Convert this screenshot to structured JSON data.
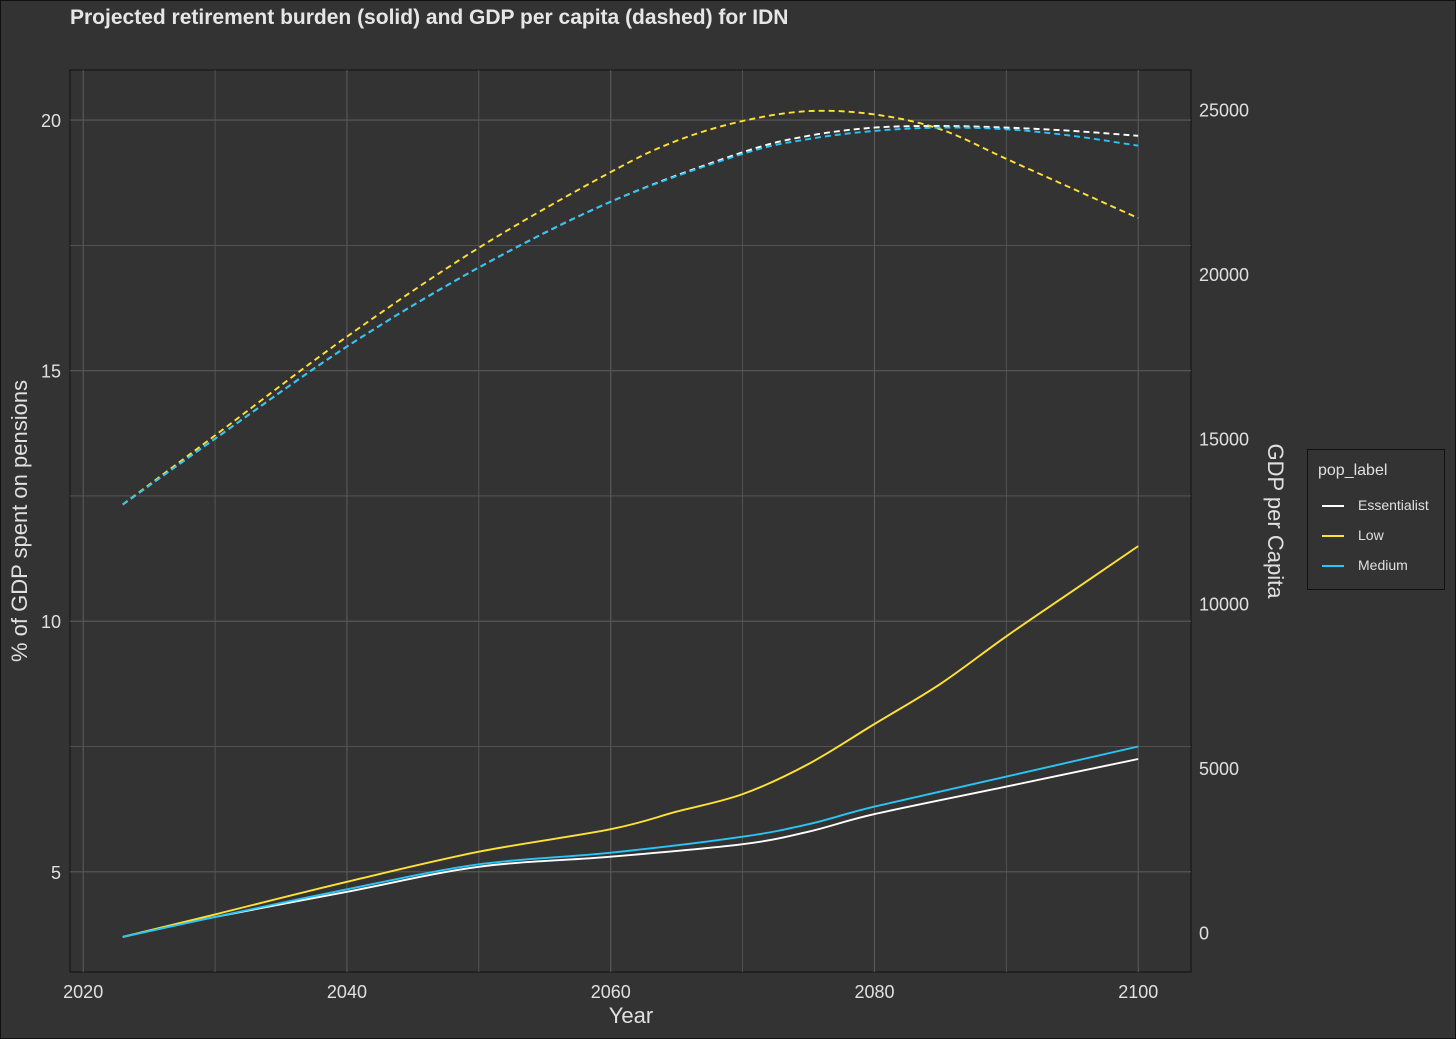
{
  "title": "Projected retirement burden (solid) and GDP per capita (dashed) for IDN",
  "colors": {
    "background": "#333333",
    "grid": "#5a5a5a",
    "text": "#e0e0e0"
  },
  "legend": {
    "title": "pop_label",
    "items": [
      {
        "label": "Essentialist",
        "color": "#ffffff"
      },
      {
        "label": "Low",
        "color": "#ffe135"
      },
      {
        "label": "Medium",
        "color": "#29c5f6"
      }
    ]
  },
  "chart_data": {
    "type": "line",
    "x_axis": {
      "label": "Year",
      "range": [
        2019,
        2104
      ],
      "ticks": [
        2020,
        2040,
        2060,
        2080,
        2100
      ]
    },
    "y_axis_left": {
      "label": "% of GDP spent on pensions",
      "range": [
        3.0,
        21.0
      ],
      "ticks": [
        5,
        10,
        15,
        20
      ]
    },
    "y_axis_right": {
      "label": "GDP per Capita",
      "range": [
        -1200,
        26200
      ],
      "ticks": [
        0,
        5000,
        10000,
        15000,
        20000,
        25000
      ]
    },
    "grid": true,
    "legend_position": "right",
    "series": [
      {
        "name": "Essentialist",
        "measure": "% of GDP spent on pensions",
        "axis": "left",
        "style": "solid",
        "color": "#ffffff",
        "x": [
          2023,
          2030,
          2040,
          2050,
          2060,
          2070,
          2075,
          2080,
          2090,
          2100
        ],
        "y": [
          3.7,
          4.1,
          4.6,
          5.1,
          5.3,
          5.55,
          5.8,
          6.15,
          6.7,
          7.25
        ]
      },
      {
        "name": "Low",
        "measure": "% of GDP spent on pensions",
        "axis": "left",
        "style": "solid",
        "color": "#ffe135",
        "x": [
          2023,
          2030,
          2040,
          2050,
          2060,
          2065,
          2070,
          2075,
          2080,
          2085,
          2090,
          2095,
          2100
        ],
        "y": [
          3.7,
          4.15,
          4.8,
          5.4,
          5.85,
          6.2,
          6.55,
          7.15,
          7.95,
          8.75,
          9.7,
          10.6,
          11.5
        ]
      },
      {
        "name": "Medium",
        "measure": "% of GDP spent on pensions",
        "axis": "left",
        "style": "solid",
        "color": "#29c5f6",
        "x": [
          2023,
          2030,
          2040,
          2050,
          2060,
          2070,
          2075,
          2080,
          2090,
          2100
        ],
        "y": [
          3.7,
          4.1,
          4.65,
          5.15,
          5.38,
          5.7,
          5.95,
          6.3,
          6.9,
          7.5
        ]
      },
      {
        "name": "Essentialist",
        "measure": "GDP per Capita",
        "axis": "right",
        "style": "dashed",
        "color": "#ffffff",
        "x": [
          2023,
          2030,
          2040,
          2050,
          2060,
          2070,
          2075,
          2080,
          2085,
          2090,
          2095,
          2100
        ],
        "y": [
          13000,
          15000,
          17800,
          20200,
          22200,
          23700,
          24200,
          24450,
          24500,
          24450,
          24350,
          24200
        ]
      },
      {
        "name": "Low",
        "measure": "GDP per Capita",
        "axis": "right",
        "style": "dashed",
        "color": "#ffe135",
        "x": [
          2023,
          2030,
          2040,
          2050,
          2060,
          2065,
          2070,
          2075,
          2080,
          2085,
          2090,
          2095,
          2100
        ],
        "y": [
          13000,
          15100,
          18100,
          20800,
          23100,
          24050,
          24650,
          24950,
          24850,
          24400,
          23500,
          22600,
          21700
        ]
      },
      {
        "name": "Medium",
        "measure": "GDP per Capita",
        "axis": "right",
        "style": "dashed",
        "color": "#29c5f6",
        "x": [
          2023,
          2030,
          2040,
          2050,
          2060,
          2070,
          2075,
          2080,
          2085,
          2090,
          2095,
          2100
        ],
        "y": [
          13000,
          15000,
          17800,
          20200,
          22200,
          23650,
          24100,
          24350,
          24450,
          24400,
          24200,
          23900
        ]
      }
    ]
  }
}
